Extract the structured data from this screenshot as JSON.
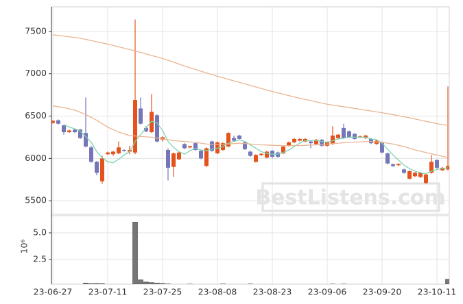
{
  "chart_data": [
    {
      "type": "candlestick",
      "categories": [
        "23-06-27",
        null,
        null,
        null,
        null,
        null,
        null,
        null,
        null,
        null,
        "23-07-11",
        null,
        null,
        null,
        null,
        null,
        null,
        null,
        null,
        null,
        "23-07-25",
        null,
        null,
        null,
        null,
        null,
        null,
        null,
        null,
        null,
        "23-08-08",
        null,
        null,
        null,
        null,
        null,
        null,
        null,
        null,
        null,
        "23-08-23",
        null,
        null,
        null,
        null,
        null,
        null,
        null,
        null,
        null,
        "23-09-06",
        null,
        null,
        null,
        null,
        null,
        null,
        null,
        null,
        null,
        "23-09-20",
        null,
        null,
        null,
        null,
        null,
        null,
        null,
        null,
        null,
        "23-10-11",
        null,
        null
      ],
      "open": [
        6420,
        6450,
        6390,
        6310,
        6340,
        6340,
        6300,
        6130,
        5960,
        5730,
        6050,
        6050,
        6060,
        6100,
        6080,
        6070,
        6590,
        6360,
        6310,
        6510,
        6220,
        6100,
        5900,
        5990,
        6170,
        6130,
        6180,
        6090,
        5910,
        6200,
        6060,
        6100,
        6140,
        6240,
        6270,
        6190,
        6080,
        5960,
        6040,
        6010,
        6090,
        6070,
        6060,
        6150,
        6190,
        6210,
        6200,
        6200,
        6170,
        6220,
        6150,
        6170,
        6240,
        6360,
        6320,
        6290,
        6250,
        6240,
        6230,
        6170,
        6190,
        6060,
        5930,
        5920,
        5870,
        5760,
        5790,
        5780,
        5710,
        5830,
        5980,
        5860,
        5870
      ],
      "high": [
        6450,
        6460,
        6400,
        6340,
        6350,
        6350,
        6720,
        6150,
        5970,
        6030,
        6080,
        6090,
        6200,
        6110,
        6150,
        7640,
        6720,
        6380,
        6760,
        6520,
        6260,
        6120,
        6070,
        6080,
        6180,
        6150,
        6190,
        6100,
        6130,
        6210,
        6200,
        6190,
        6310,
        6270,
        6280,
        6200,
        6090,
        6050,
        6060,
        6090,
        6100,
        6080,
        6150,
        6200,
        6240,
        6240,
        6240,
        6210,
        6230,
        6230,
        6200,
        6380,
        6290,
        6410,
        6330,
        6300,
        6270,
        6280,
        6240,
        6220,
        6200,
        6070,
        5940,
        5940,
        5880,
        5860,
        5840,
        5840,
        5820,
        6040,
        5990,
        5900,
        6850
      ],
      "low": [
        6410,
        6400,
        6280,
        6300,
        6300,
        6230,
        6130,
        5950,
        5800,
        5700,
        6040,
        6030,
        6050,
        6080,
        6050,
        6050,
        6400,
        6310,
        6300,
        6190,
        6200,
        5740,
        5780,
        5980,
        6110,
        6120,
        6090,
        5990,
        5900,
        6080,
        6050,
        6090,
        6130,
        6200,
        6220,
        6100,
        6020,
        5950,
        6030,
        6000,
        6000,
        6010,
        6050,
        6140,
        6180,
        6200,
        6190,
        6120,
        6160,
        6140,
        6140,
        6160,
        6230,
        6230,
        6240,
        6220,
        6240,
        6230,
        6170,
        6160,
        6060,
        5930,
        5900,
        5910,
        5820,
        5750,
        5780,
        5770,
        5700,
        5820,
        5870,
        5850,
        5860
      ],
      "close": [
        6445,
        6410,
        6310,
        6330,
        6310,
        6240,
        6140,
        5960,
        5830,
        6000,
        6070,
        6080,
        6130,
        6090,
        6100,
        6690,
        6410,
        6320,
        6550,
        6200,
        6250,
        5890,
        6060,
        6070,
        6120,
        6145,
        6100,
        6000,
        6120,
        6090,
        6190,
        6180,
        6300,
        6210,
        6230,
        6110,
        6030,
        6040,
        6055,
        6080,
        6020,
        6020,
        6140,
        6190,
        6230,
        6230,
        6230,
        6180,
        6220,
        6150,
        6190,
        6270,
        6280,
        6240,
        6250,
        6230,
        6260,
        6270,
        6180,
        6210,
        6070,
        5940,
        5910,
        5935,
        5830,
        5850,
        5830,
        5830,
        5810,
        5960,
        5890,
        5890,
        5910
      ],
      "up_color": "#e4531d",
      "down_color": "#7476b8",
      "series": [
        {
          "color": "#7fd3b0",
          "values": [
            null,
            null,
            6400,
            6370,
            6350,
            6320,
            6260,
            6190,
            6080,
            6010,
            5960,
            5950,
            5990,
            6040,
            6080,
            6200,
            6280,
            6360,
            6440,
            6420,
            6330,
            6200,
            6130,
            6080,
            6050,
            6090,
            6120,
            6100,
            6090,
            6110,
            6120,
            6140,
            6180,
            6200,
            6220,
            6200,
            6160,
            6120,
            6080,
            6060,
            6050,
            6050,
            6070,
            6100,
            6140,
            6180,
            6210,
            6210,
            6210,
            6200,
            6190,
            6210,
            6230,
            6240,
            6250,
            6250,
            6250,
            6250,
            6230,
            6220,
            6180,
            6110,
            6040,
            5980,
            5920,
            5880,
            5850,
            5830,
            5820,
            5850,
            5870,
            5880,
            5890
          ]
        },
        {
          "color": "#e9b491",
          "values": [
            6620,
            6610,
            6600,
            6585,
            6570,
            6545,
            6520,
            6485,
            6450,
            6410,
            6370,
            6340,
            6310,
            6290,
            6270,
            6265,
            6260,
            6255,
            6250,
            6240,
            6230,
            6220,
            6210,
            6205,
            6200,
            6195,
            6190,
            6180,
            6170,
            6168,
            6165,
            6168,
            6170,
            6175,
            6180,
            6175,
            6170,
            6165,
            6160,
            6158,
            6155,
            6152,
            6150,
            6150,
            6150,
            6152,
            6155,
            6158,
            6160,
            6165,
            6170,
            6175,
            6180,
            6185,
            6190,
            6192,
            6195,
            6198,
            6200,
            6195,
            6190,
            6180,
            6170,
            6155,
            6140,
            6120,
            6100,
            6085,
            6070,
            6055,
            6040,
            6025,
            6010
          ]
        },
        {
          "color": "#e9b491",
          "values": [
            7460,
            7452,
            7444,
            7436,
            7428,
            7420,
            7406,
            7392,
            7378,
            7364,
            7350,
            7334,
            7318,
            7302,
            7286,
            7270,
            7252,
            7234,
            7216,
            7198,
            7180,
            7158,
            7136,
            7114,
            7092,
            7070,
            7050,
            7030,
            7010,
            6990,
            6970,
            6952,
            6934,
            6916,
            6898,
            6880,
            6862,
            6844,
            6826,
            6808,
            6790,
            6774,
            6758,
            6742,
            6726,
            6710,
            6696,
            6682,
            6668,
            6654,
            6640,
            6630,
            6620,
            6610,
            6600,
            6590,
            6580,
            6570,
            6560,
            6550,
            6540,
            6528,
            6516,
            6504,
            6492,
            6480,
            6466,
            6452,
            6438,
            6424,
            6410,
            6400,
            6390
          ]
        }
      ],
      "ylim": [
        5340,
        7790
      ],
      "yticks": [
        5500,
        6000,
        6500,
        7000,
        7500
      ],
      "grid": true,
      "watermark": "BestListens.com"
    },
    {
      "type": "bar",
      "color": "#777777",
      "values": [
        0.15,
        0.12,
        0.14,
        0.1,
        0.1,
        0.12,
        0.3,
        0.25,
        0.26,
        0.24,
        0.15,
        0.12,
        0.14,
        0.1,
        0.12,
        6.0,
        0.6,
        0.4,
        0.35,
        0.3,
        0.26,
        0.22,
        0.18,
        0.14,
        0.12,
        0.21,
        0.12,
        0.13,
        0.15,
        0.1,
        0.12,
        0.22,
        0.15,
        0.12,
        0.1,
        0.14,
        0.22,
        0.12,
        0.1,
        0.11,
        0.13,
        0.12,
        0.1,
        0.11,
        0.12,
        0.1,
        0.13,
        0.12,
        0.11,
        0.1,
        0.12,
        0.21,
        0.12,
        0.21,
        0.13,
        0.11,
        0.1,
        0.12,
        0.11,
        0.1,
        0.13,
        0.14,
        0.12,
        0.11,
        0.1,
        0.12,
        0.13,
        0.11,
        0.12,
        0.14,
        0.13,
        0.12,
        0.65
      ],
      "ylim": [
        0.2,
        6.6
      ],
      "yticks": [
        {
          "value": 2.5,
          "label": "2.5"
        },
        {
          "value": 5,
          "label": "5.0"
        }
      ],
      "grid": true,
      "axis_offset_label": "10⁶"
    }
  ]
}
